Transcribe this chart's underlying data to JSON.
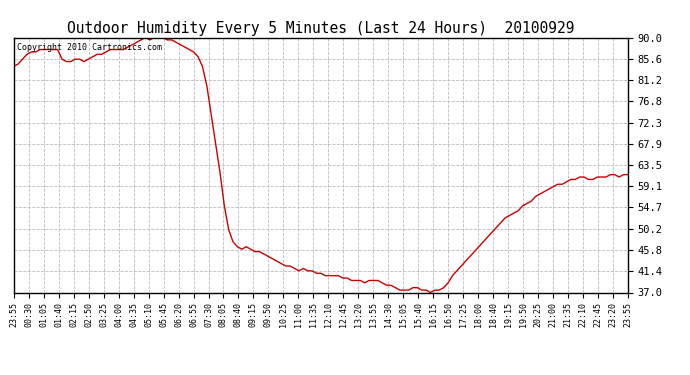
{
  "title": "Outdoor Humidity Every 5 Minutes (Last 24 Hours)  20100929",
  "copyright_text": "Copyright 2010 Cartronics.com",
  "line_color": "#cc0000",
  "background_color": "#ffffff",
  "grid_color": "#bbbbbb",
  "ylim": [
    37.0,
    90.0
  ],
  "yticks": [
    37.0,
    41.4,
    45.8,
    50.2,
    54.7,
    59.1,
    63.5,
    67.9,
    72.3,
    76.8,
    81.2,
    85.6,
    90.0
  ],
  "x_labels": [
    "23:55",
    "00:30",
    "01:05",
    "01:40",
    "02:15",
    "02:50",
    "03:25",
    "04:00",
    "04:35",
    "05:10",
    "05:45",
    "06:20",
    "06:55",
    "07:30",
    "08:05",
    "08:40",
    "09:15",
    "09:50",
    "10:25",
    "11:00",
    "11:35",
    "12:10",
    "12:45",
    "13:20",
    "13:55",
    "14:30",
    "15:05",
    "15:40",
    "16:15",
    "16:50",
    "17:25",
    "18:00",
    "18:40",
    "19:15",
    "19:50",
    "20:25",
    "21:00",
    "21:35",
    "22:10",
    "22:45",
    "23:20",
    "23:55"
  ],
  "y_values": [
    84.0,
    84.5,
    85.5,
    86.5,
    87.0,
    87.0,
    87.5,
    87.5,
    87.5,
    87.5,
    87.5,
    85.5,
    85.0,
    85.0,
    85.5,
    85.5,
    85.0,
    85.5,
    86.0,
    86.5,
    86.5,
    87.0,
    87.5,
    87.5,
    87.5,
    87.5,
    88.0,
    88.5,
    89.0,
    89.5,
    90.0,
    89.5,
    90.0,
    90.0,
    90.0,
    89.5,
    89.5,
    89.0,
    88.5,
    88.0,
    87.5,
    87.0,
    86.0,
    84.0,
    80.0,
    74.0,
    68.0,
    62.0,
    55.0,
    50.0,
    47.5,
    46.5,
    46.0,
    46.5,
    46.0,
    45.5,
    45.5,
    45.0,
    44.5,
    44.0,
    43.5,
    43.0,
    42.5,
    42.5,
    42.0,
    41.5,
    42.0,
    41.5,
    41.5,
    41.0,
    41.0,
    40.5,
    40.5,
    40.5,
    40.5,
    40.0,
    40.0,
    39.5,
    39.5,
    39.5,
    39.0,
    39.5,
    39.5,
    39.5,
    39.0,
    38.5,
    38.5,
    38.0,
    37.5,
    37.5,
    37.5,
    38.0,
    38.0,
    37.5,
    37.5,
    37.0,
    37.5,
    37.5,
    38.0,
    39.0,
    40.5,
    41.5,
    42.5,
    43.5,
    44.5,
    45.5,
    46.5,
    47.5,
    48.5,
    49.5,
    50.5,
    51.5,
    52.5,
    53.0,
    53.5,
    54.0,
    55.0,
    55.5,
    56.0,
    57.0,
    57.5,
    58.0,
    58.5,
    59.0,
    59.5,
    59.5,
    60.0,
    60.5,
    60.5,
    61.0,
    61.0,
    60.5,
    60.5,
    61.0,
    61.0,
    61.0,
    61.5,
    61.5,
    61.0,
    61.5,
    61.5
  ]
}
